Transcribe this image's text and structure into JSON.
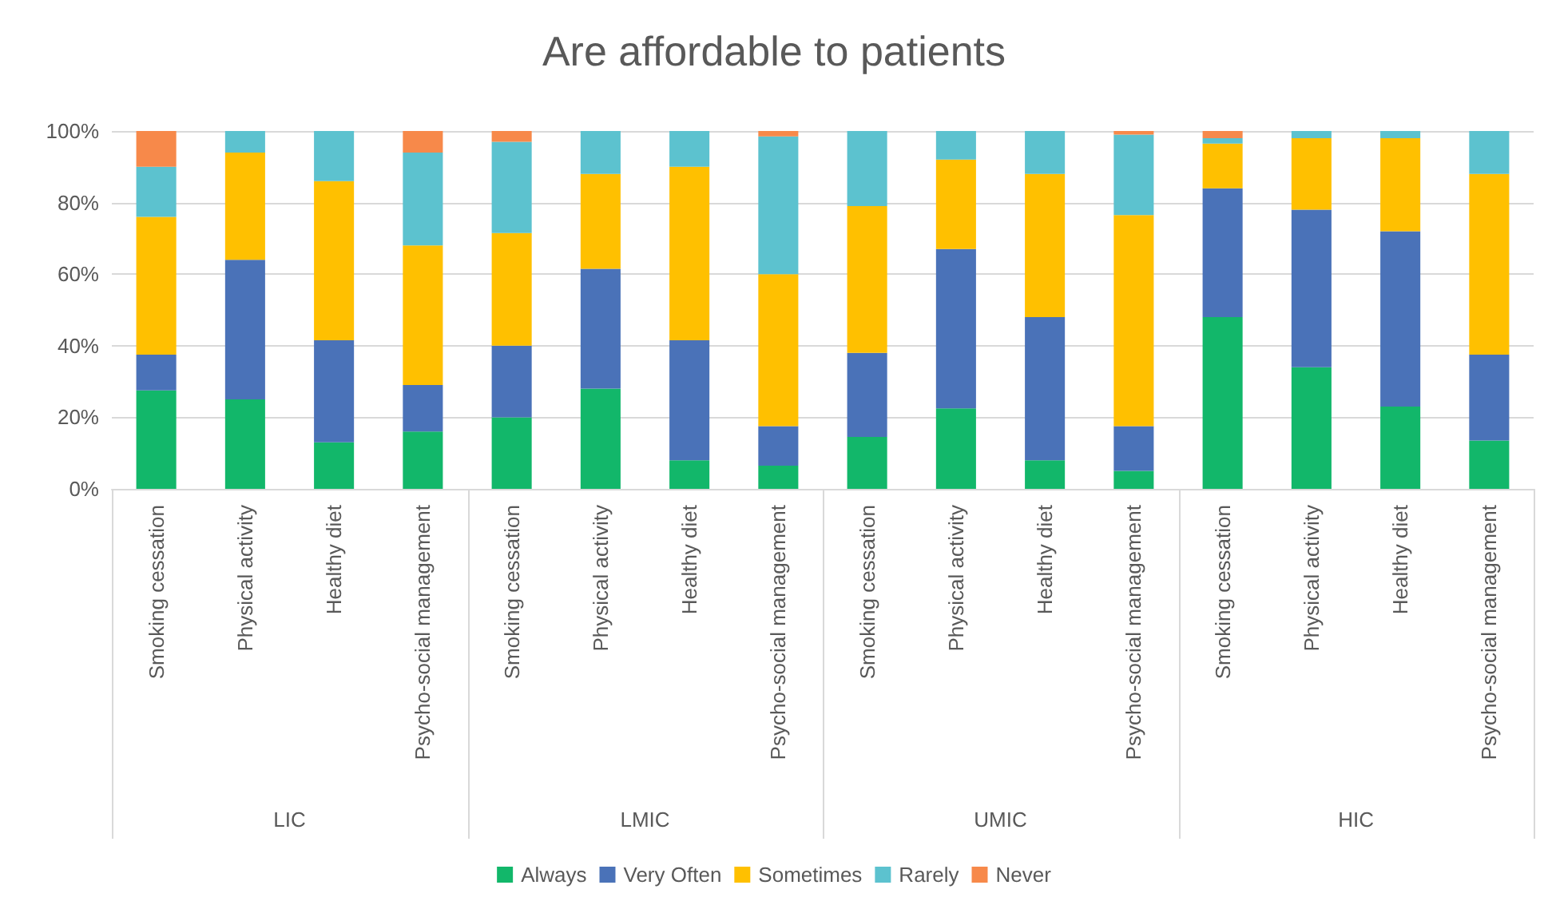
{
  "chart_data": {
    "type": "bar",
    "title": "Are affordable to patients",
    "stacked": true,
    "categories": [
      "Smoking cessation",
      "Physical activity",
      "Healthy diet",
      "Psycho-social management",
      "Smoking cessation",
      "Physical activity",
      "Healthy diet",
      "Psycho-social management",
      "Smoking cessation",
      "Physical activity",
      "Healthy diet",
      "Psycho-social management",
      "Smoking cessation",
      "Physical activity",
      "Healthy diet",
      "Psycho-social management"
    ],
    "series": [
      {
        "name": "Always",
        "color": "#12b76a",
        "values": [
          27.5,
          25,
          13,
          16,
          20,
          28,
          8,
          6.5,
          14.5,
          22.5,
          8,
          5,
          48,
          34,
          23,
          13.5
        ]
      },
      {
        "name": "Very Often",
        "color": "#4a72b8",
        "values": [
          10,
          39,
          28.5,
          13,
          20,
          33.5,
          33.5,
          11,
          23.5,
          44.5,
          40,
          12.5,
          36,
          44,
          49,
          24
        ]
      },
      {
        "name": "Sometimes",
        "color": "#ffc000",
        "values": [
          38.5,
          30,
          44.5,
          39,
          31.5,
          26.5,
          48.5,
          42.5,
          41,
          25,
          40,
          59,
          12.5,
          20,
          26,
          50.5
        ]
      },
      {
        "name": "Rarely",
        "color": "#5cc2cf",
        "values": [
          14,
          6,
          14,
          26,
          25.5,
          12,
          10,
          38.5,
          21,
          8,
          12,
          22.5,
          1.5,
          2,
          2,
          12
        ]
      },
      {
        "name": "Never",
        "color": "#f7894a",
        "values": [
          10,
          0,
          0,
          6,
          3,
          0,
          0,
          1.5,
          0,
          0,
          0,
          1,
          2,
          0,
          0,
          0
        ]
      }
    ],
    "ylim": [
      0,
      100
    ],
    "yticks": [
      {
        "value": 0,
        "label": "0%"
      },
      {
        "value": 20,
        "label": "20%"
      },
      {
        "value": 40,
        "label": "40%"
      },
      {
        "value": 60,
        "label": "60%"
      },
      {
        "value": 80,
        "label": "80%"
      },
      {
        "value": 100,
        "label": "100%"
      }
    ],
    "grid": "y",
    "legend": "bottom",
    "annotations": [
      "LIC",
      "LMIC",
      "UMIC",
      "HIC"
    ]
  }
}
